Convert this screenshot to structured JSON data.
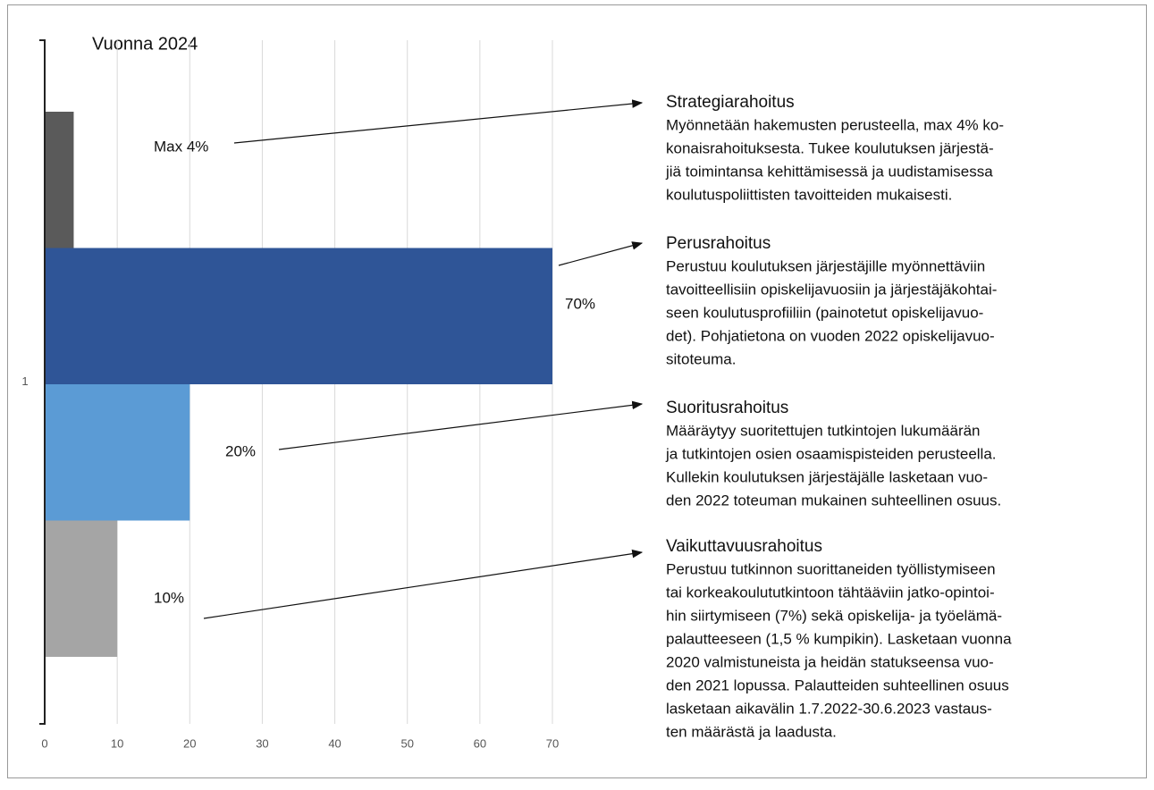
{
  "chart_data": {
    "type": "bar",
    "orientation": "horizontal",
    "title": "Vuonna 2024",
    "categories": [
      "1"
    ],
    "xlim": [
      0,
      70
    ],
    "xticks": [
      0,
      10,
      20,
      30,
      40,
      50,
      60,
      70
    ],
    "grid": true,
    "series": [
      {
        "name": "Strategiarahoitus",
        "color": "#5a5a5a",
        "values": [
          4
        ],
        "value_labels": [
          "Max 4%"
        ],
        "description": [
          "Myönnetään hakemusten perusteella, max 4% ko-",
          "konaisrahoituksesta. Tukee koulutuksen järjestä-",
          "jiä toimintansa kehittämisessä ja uudistamisessa",
          "koulutuspoliittisten tavoitteiden mukaisesti."
        ]
      },
      {
        "name": "Perusrahoitus",
        "color": "#2f5597",
        "values": [
          70
        ],
        "value_labels": [
          "70%"
        ],
        "description": [
          "Perustuu koulutuksen järjestäjille myönnettäviin",
          "tavoitteellisiin opiskelijavuosiin ja järjestäjäkohtai-",
          "seen koulutusprofiiliin (painotetut opiskelijavuo-",
          "det). Pohjatietona on vuoden 2022 opiskelijavuo-",
          "sitoteuma."
        ]
      },
      {
        "name": "Suoritusrahoitus",
        "color": "#5b9bd5",
        "values": [
          20
        ],
        "value_labels": [
          "20%"
        ],
        "description": [
          "Määräytyy suoritettujen tutkintojen lukumäärän",
          "ja tutkintojen osien osaamispisteiden perusteella.",
          "Kullekin koulutuksen järjestäjälle lasketaan vuo-",
          "den 2022 toteuman mukainen suhteellinen osuus."
        ]
      },
      {
        "name": "Vaikuttavuusrahoitus",
        "color": "#a5a5a5",
        "values": [
          10
        ],
        "value_labels": [
          "10%"
        ],
        "description": [
          "Perustuu tutkinnon suorittaneiden työllistymiseen",
          "tai korkeakoulututkintoon tähtääviin jatko-opintoi-",
          "hin siirtymiseen (7%)  sekä opiskelija- ja työelämä-",
          "palautteeseen (1,5 % kumpikin). Lasketaan vuonna",
          "2020 valmistuneista ja heidän statukseensa vuo-",
          "den 2021 lopussa. Palautteiden suhteellinen osuus",
          "lasketaan aikavälin 1.7.2022-30.6.2023 vastaus-",
          "ten määrästä ja laadusta."
        ]
      }
    ]
  }
}
